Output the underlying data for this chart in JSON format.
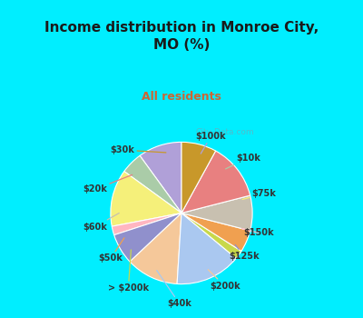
{
  "title": "Income distribution in Monroe City,\nMO (%)",
  "subtitle": "All residents",
  "title_color": "#1a1a1a",
  "subtitle_color": "#cc6633",
  "background_cyan": "#00eeff",
  "background_chart_inner": "#e8f5f0",
  "watermark": "City-Data.com",
  "labels": [
    "$100k",
    "$10k",
    "$75k",
    "$150k",
    "$125k",
    "$200k",
    "$40k",
    "> $200k",
    "$50k",
    "$60k",
    "$20k",
    "$30k"
  ],
  "values": [
    10,
    5,
    13,
    2,
    7,
    12,
    15,
    2,
    5,
    8,
    13,
    8
  ],
  "colors": [
    "#b0a0d8",
    "#aacca8",
    "#f5f07a",
    "#ffb6c1",
    "#9090cc",
    "#f5c89a",
    "#aac8f0",
    "#c8d84a",
    "#f0a050",
    "#c8c0b0",
    "#e88080",
    "#c8982a"
  ],
  "label_color": "#333333",
  "label_fontsize": 7.0,
  "title_fontsize": 11.0,
  "subtitle_fontsize": 9.0
}
